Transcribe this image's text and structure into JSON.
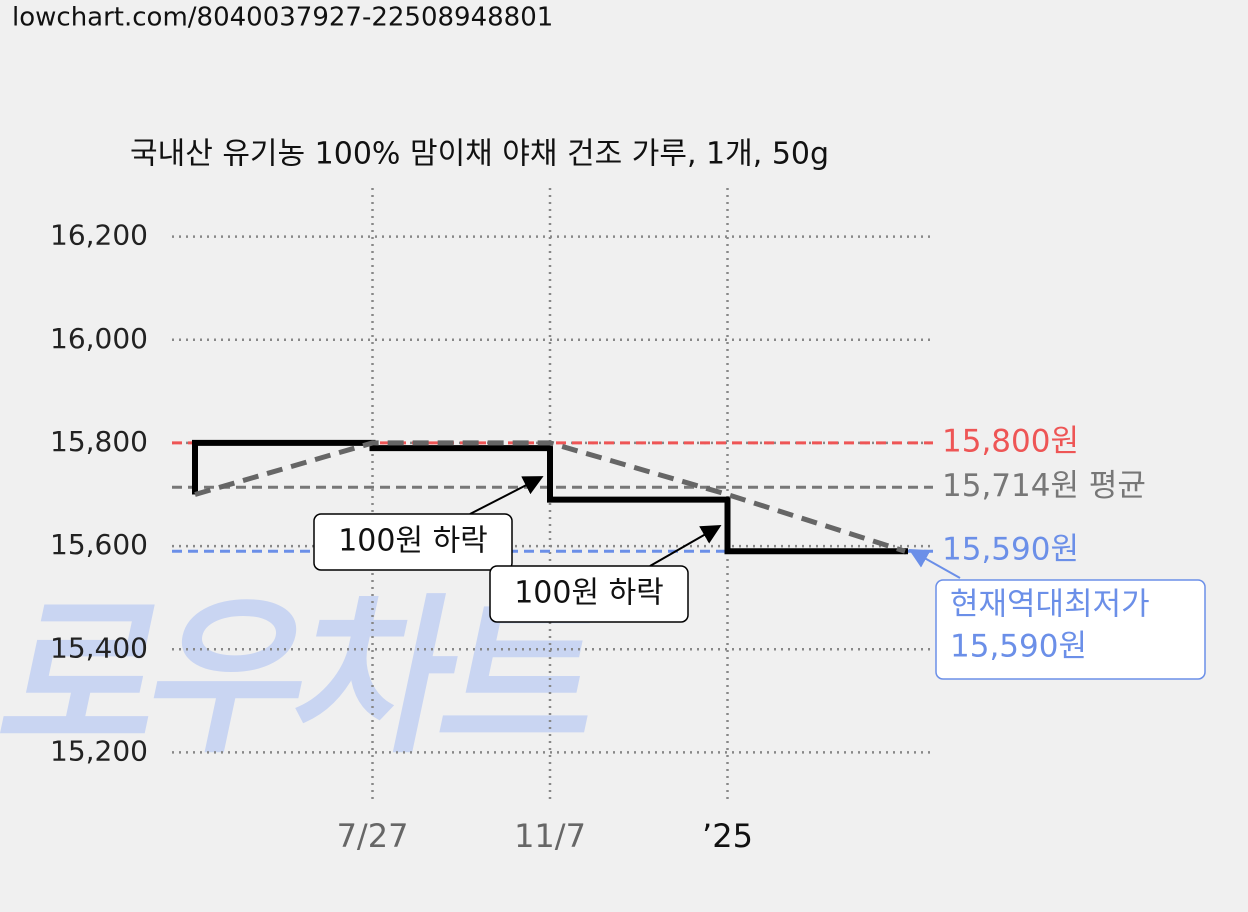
{
  "url": "lowchart.com/8040037927-22508948801",
  "chart_data": {
    "type": "step",
    "title": "국내산 유기농 100% 맘이채 야채 건조 가루, 1개, 50g",
    "watermark": "로우차트",
    "categories": [
      null,
      "7/27",
      "11/7",
      "’25",
      null
    ],
    "series": [
      {
        "color": "#000000",
        "values": [
          15800,
          15790,
          15690,
          15590,
          15590
        ]
      },
      {
        "color": "#666666",
        "values": [
          15700,
          15800,
          15800,
          15700,
          15590
        ],
        "dashed": true
      }
    ],
    "ylim": [
      15100,
      16300
    ],
    "yticks": [
      {
        "value": 15200,
        "label": "15,200"
      },
      {
        "value": 15400,
        "label": "15,400"
      },
      {
        "value": 15600,
        "label": "15,600"
      },
      {
        "value": 15800,
        "label": "15,800"
      },
      {
        "value": 16000,
        "label": "16,000"
      },
      {
        "value": 16200,
        "label": "16,200"
      }
    ],
    "grid": true,
    "reference_lines": [
      {
        "value": 15800,
        "label": "15,800원",
        "color": "#ee5555"
      },
      {
        "value": 15714,
        "label": "15,714원 평균",
        "color": "#777777"
      },
      {
        "value": 15590,
        "label": "15,590원",
        "color": "#6b8fe8"
      }
    ],
    "annotations": [
      "100원 하락",
      "100원 하락"
    ],
    "callout": [
      "현재역대최저가",
      "15,590원"
    ]
  }
}
